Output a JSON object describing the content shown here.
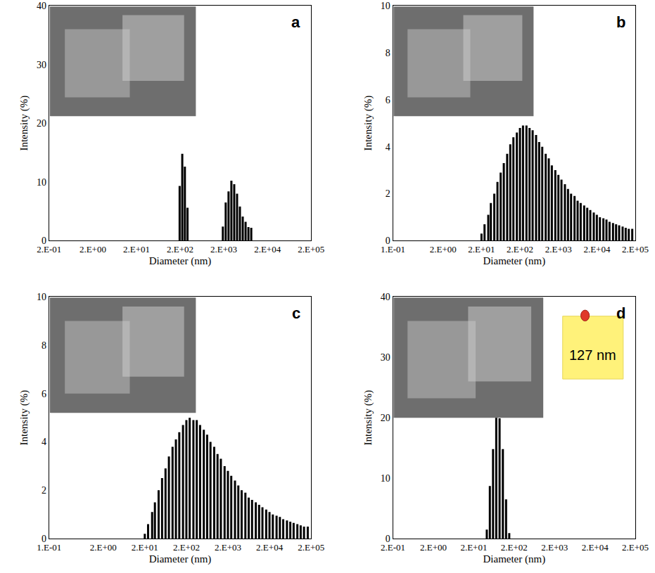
{
  "chart_data": [
    {
      "type": "bar",
      "title": "a",
      "x_label": "Diameter (nm)",
      "y_label": "Intensity (%)",
      "log": "x",
      "grid": false,
      "color": "#000000",
      "x": [
        195,
        224,
        257,
        295,
        1905,
        2213,
        2570,
        2985,
        3467,
        4027,
        4677,
        5433,
        6310,
        7328,
        8511
      ],
      "values": [
        9.3,
        14.8,
        12.6,
        5.6,
        2.4,
        6.5,
        8.4,
        10.2,
        9.6,
        8.0,
        5.8,
        4.1,
        3.2,
        2.3,
        2.2
      ],
      "xlim": [
        0.2,
        200000
      ],
      "xticks": [
        {
          "value": 0.2,
          "label": "2.E-01"
        },
        {
          "value": 2,
          "label": "2.E+00"
        },
        {
          "value": 20,
          "label": "2.E+01"
        },
        {
          "value": 200,
          "label": "2.E+02"
        },
        {
          "value": 2000,
          "label": "2.E+03"
        },
        {
          "value": 20000,
          "label": "2.E+04"
        },
        {
          "value": 200000,
          "label": "2.E+05"
        }
      ],
      "ylim": [
        0,
        40
      ],
      "yticks": [
        0,
        10,
        20,
        30,
        40
      ]
    },
    {
      "type": "bar",
      "title": "b",
      "x_label": "Diameter (nm)",
      "y_label": "Intensity (%)",
      "log": "x",
      "grid": false,
      "color": "#000000",
      "x": [
        20,
        24,
        30,
        35,
        43,
        52,
        63,
        76,
        93,
        112,
        135,
        166,
        200,
        240,
        295,
        355,
        427,
        525,
        631,
        759,
        933,
        1122,
        1349,
        1660,
        1995,
        2399,
        2951,
        3548,
        4266,
        5248,
        6310,
        7586,
        9333,
        11220,
        13490,
        16600,
        19950,
        23990,
        29510,
        35480,
        42660,
        52480,
        63100,
        75860,
        93330,
        112200,
        134900,
        166000
      ],
      "values": [
        0.3,
        0.7,
        1.1,
        1.6,
        2.0,
        2.5,
        2.9,
        3.3,
        3.7,
        4.1,
        4.4,
        4.6,
        4.8,
        4.9,
        4.9,
        4.8,
        4.7,
        4.5,
        4.2,
        4.0,
        3.7,
        3.5,
        3.2,
        3.0,
        2.8,
        2.6,
        2.4,
        2.2,
        2.0,
        1.9,
        1.7,
        1.6,
        1.5,
        1.4,
        1.3,
        1.2,
        1.1,
        1.0,
        0.95,
        0.9,
        0.8,
        0.75,
        0.7,
        0.65,
        0.6,
        0.55,
        0.5,
        0.5
      ],
      "xlim": [
        0.1,
        200000
      ],
      "xticks": [
        {
          "value": 0.1,
          "label": "1.E-01"
        },
        {
          "value": 2,
          "label": "2.E+00"
        },
        {
          "value": 20,
          "label": "2.E+01"
        },
        {
          "value": 200,
          "label": "2.E+02"
        },
        {
          "value": 2000,
          "label": "2.E+03"
        },
        {
          "value": 20000,
          "label": "2.E+04"
        },
        {
          "value": 200000,
          "label": "2.E+05"
        }
      ],
      "ylim": [
        0,
        10
      ],
      "yticks": [
        0,
        2,
        4,
        6,
        8,
        10
      ]
    },
    {
      "type": "bar",
      "title": "c",
      "x_label": "Diameter (nm)",
      "y_label": "Intensity (%)",
      "log": "x",
      "grid": false,
      "color": "#000000",
      "x": [
        20,
        24,
        30,
        35,
        43,
        52,
        63,
        76,
        93,
        112,
        135,
        166,
        200,
        240,
        295,
        355,
        427,
        525,
        631,
        759,
        933,
        1122,
        1349,
        1660,
        1995,
        2399,
        2951,
        3548,
        4266,
        5248,
        6310,
        7586,
        9333,
        11220,
        13490,
        16600,
        19950,
        23990,
        29510,
        35480,
        42660,
        52480,
        63100,
        75860,
        93330,
        112200,
        134900,
        166000
      ],
      "values": [
        0.2,
        0.6,
        1.1,
        1.5,
        2.0,
        2.5,
        2.9,
        3.4,
        3.8,
        4.1,
        4.4,
        4.7,
        4.9,
        5.0,
        4.9,
        4.9,
        4.7,
        4.5,
        4.3,
        4.0,
        3.8,
        3.5,
        3.3,
        3.0,
        2.8,
        2.6,
        2.4,
        2.2,
        2.0,
        1.9,
        1.7,
        1.6,
        1.5,
        1.4,
        1.3,
        1.2,
        1.1,
        1.0,
        0.95,
        0.9,
        0.8,
        0.75,
        0.7,
        0.65,
        0.6,
        0.55,
        0.5,
        0.5
      ],
      "xlim": [
        0.1,
        200000
      ],
      "xticks": [
        {
          "value": 0.1,
          "label": "1.E-01"
        },
        {
          "value": 2,
          "label": "2.E+00"
        },
        {
          "value": 20,
          "label": "2.E+01"
        },
        {
          "value": 200,
          "label": "2.E+02"
        },
        {
          "value": 2000,
          "label": "2.E+03"
        },
        {
          "value": 20000,
          "label": "2.E+04"
        },
        {
          "value": 200000,
          "label": "2.E+05"
        }
      ],
      "ylim": [
        0,
        10
      ],
      "yticks": [
        0,
        2,
        4,
        6,
        8,
        10
      ]
    },
    {
      "type": "bar",
      "title": "d",
      "x_label": "Diameter (nm)",
      "y_label": "Intensity (%)",
      "log": "x",
      "grid": false,
      "color": "#000000",
      "annotations": [
        "127 nm"
      ],
      "x": [
        42,
        50,
        60,
        72,
        87,
        105,
        126,
        151
      ],
      "values": [
        1.5,
        8.7,
        14.8,
        20.0,
        19.9,
        14.8,
        6.5,
        0.9
      ],
      "xlim": [
        0.2,
        200000
      ],
      "xticks": [
        {
          "value": 0.2,
          "label": "2.E-01"
        },
        {
          "value": 2,
          "label": "2.E+00"
        },
        {
          "value": 20,
          "label": "2.E+01"
        },
        {
          "value": 200,
          "label": "2.E+02"
        },
        {
          "value": 2000,
          "label": "2.E+03"
        },
        {
          "value": 20000,
          "label": "2.E+04"
        },
        {
          "value": 200000,
          "label": "2.E+05"
        }
      ],
      "ylim": [
        0,
        40
      ],
      "yticks": [
        0,
        10,
        20,
        30,
        40
      ]
    }
  ]
}
